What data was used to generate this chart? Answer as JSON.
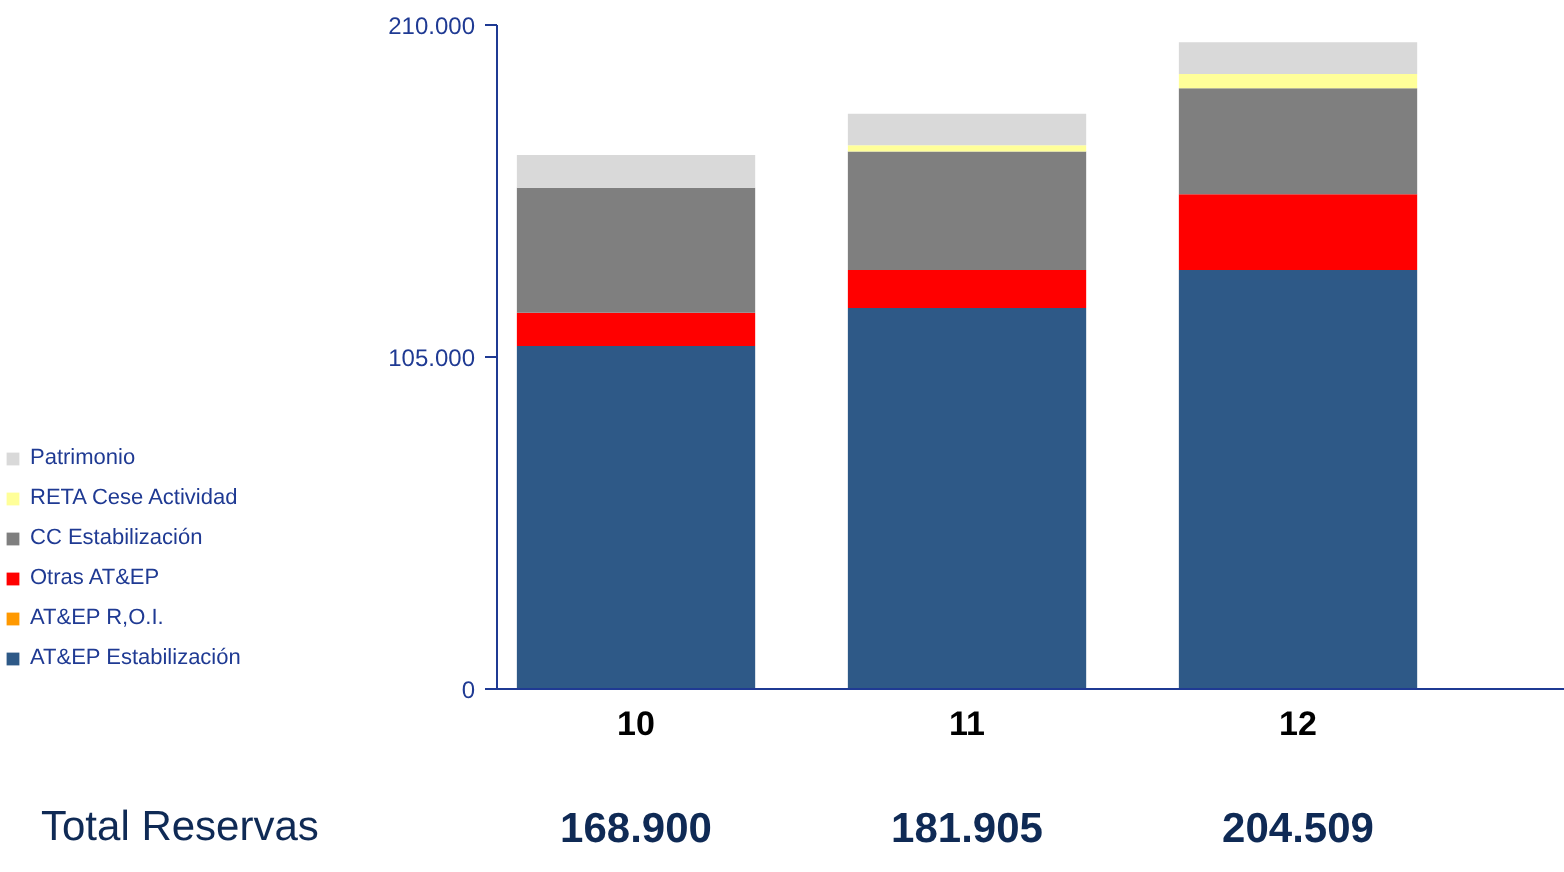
{
  "chart_data": {
    "type": "bar",
    "stacked": true,
    "categories": [
      "10",
      "11",
      "12"
    ],
    "series": [
      {
        "name": "AT&EP Estabilización",
        "color": "#2e5987",
        "values": [
          108500,
          120500,
          132500
        ]
      },
      {
        "name": "AT&EP R,O.I.",
        "color": "#ff9900",
        "values": [
          0,
          0,
          0
        ]
      },
      {
        "name": "Otras AT&EP",
        "color": "#ff0000",
        "values": [
          10500,
          12000,
          24000
        ]
      },
      {
        "name": "CC Estabilización",
        "color": "#7f7f7f",
        "values": [
          39500,
          37500,
          33500
        ]
      },
      {
        "name": "RETA Cese Actividad",
        "color": "#ffff99",
        "values": [
          0,
          2000,
          4500
        ]
      },
      {
        "name": "Patrimonio",
        "color": "#d9d9d9",
        "values": [
          10400,
          9905,
          10009
        ]
      }
    ],
    "ylim": [
      0,
      210000
    ],
    "yticks": [
      0,
      {
        "value": 105000,
        "label": "105.000"
      },
      {
        "value": 210000,
        "label": "210.000"
      }
    ],
    "grid": false,
    "legend": "left",
    "annotations": [
      "Total Reservas"
    ],
    "totals": [
      "168.900",
      "181.905",
      "204.509"
    ]
  }
}
